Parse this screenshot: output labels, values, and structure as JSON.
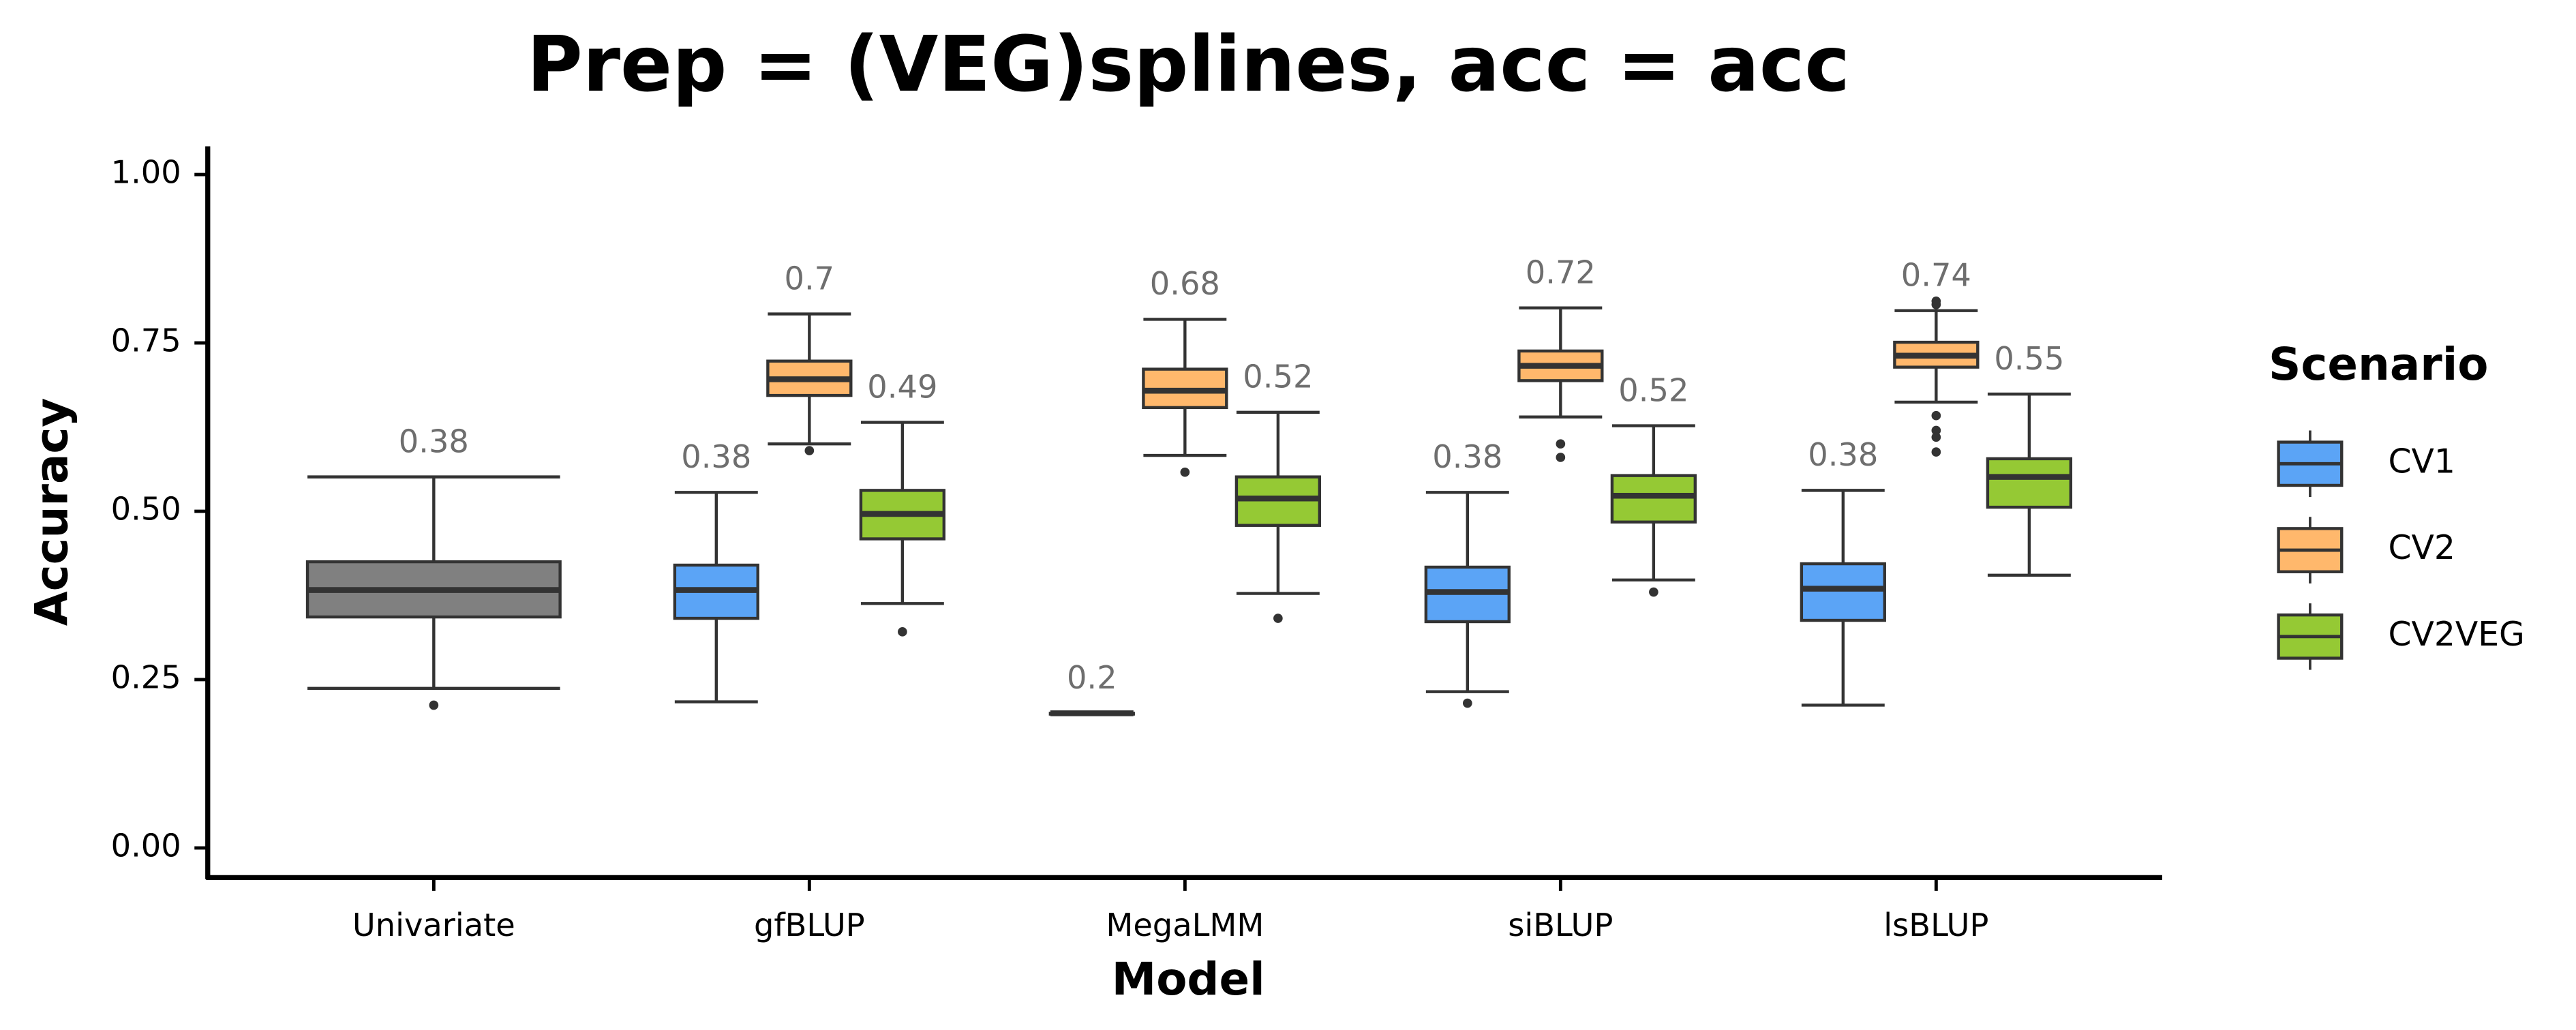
{
  "chart_data": {
    "type": "box",
    "title": "Prep = (VEG)splines, acc = acc",
    "xlabel": "Model",
    "ylabel": "Accuracy",
    "legend_title": "Scenario",
    "legend": "right",
    "categories": [
      "Univariate",
      "gfBLUP",
      "MegaLMM",
      "siBLUP",
      "lsBLUP"
    ],
    "ylim": [
      -0.044,
      1.042
    ],
    "yticks": [
      {
        "value": 0,
        "label": "0.00"
      },
      0.25,
      {
        "value": 0.5,
        "label": "0.50"
      },
      0.75,
      {
        "value": 1,
        "label": "1.00"
      }
    ],
    "series": [
      {
        "color": "#808080",
        "boxes": [
          {
            "whislo": 0.237,
            "q1": 0.343,
            "med": 0.383,
            "q3": 0.425,
            "whishi": 0.551,
            "fliers": [
              0.212
            ],
            "mean_label": 0.38
          },
          null,
          null,
          null,
          null
        ]
      },
      {
        "name": "CV1",
        "color": "#5ba4f6",
        "boxes": [
          null,
          {
            "whislo": 0.217,
            "q1": 0.341,
            "med": 0.383,
            "q3": 0.42,
            "whishi": 0.528,
            "fliers": [],
            "mean_label": 0.38
          },
          {
            "whislo": 0.2,
            "q1": 0.2,
            "med": 0.2,
            "q3": 0.2,
            "whishi": 0.2,
            "fliers": [],
            "mean_label": 0.2
          },
          {
            "whislo": 0.232,
            "q1": 0.336,
            "med": 0.38,
            "q3": 0.417,
            "whishi": 0.528,
            "fliers": [
              0.215
            ],
            "mean_label": 0.38
          },
          {
            "whislo": 0.212,
            "q1": 0.338,
            "med": 0.385,
            "q3": 0.422,
            "whishi": 0.531,
            "fliers": [],
            "mean_label": 0.38
          }
        ]
      },
      {
        "name": "CV2",
        "color": "#ffb86c",
        "boxes": [
          null,
          {
            "whislo": 0.6,
            "q1": 0.672,
            "med": 0.696,
            "q3": 0.723,
            "whishi": 0.793,
            "fliers": [
              0.59
            ],
            "mean_label": 0.7
          },
          {
            "whislo": 0.583,
            "q1": 0.654,
            "med": 0.679,
            "q3": 0.711,
            "whishi": 0.785,
            "fliers": [
              0.558
            ],
            "mean_label": 0.68
          },
          {
            "whislo": 0.64,
            "q1": 0.694,
            "med": 0.716,
            "q3": 0.738,
            "whishi": 0.802,
            "fliers": [
              0.6,
              0.58
            ],
            "mean_label": 0.72
          },
          {
            "whislo": 0.662,
            "q1": 0.714,
            "med": 0.731,
            "q3": 0.751,
            "whishi": 0.798,
            "fliers": [
              0.812,
              0.807,
              0.642,
              0.62,
              0.61,
              0.588
            ],
            "mean_label": 0.74
          }
        ]
      },
      {
        "name": "CV2VEG",
        "color": "#95c934",
        "boxes": [
          null,
          {
            "whislo": 0.363,
            "q1": 0.459,
            "med": 0.496,
            "q3": 0.531,
            "whishi": 0.632,
            "fliers": [
              0.321
            ],
            "mean_label": 0.49
          },
          {
            "whislo": 0.378,
            "q1": 0.479,
            "med": 0.519,
            "q3": 0.551,
            "whishi": 0.647,
            "fliers": [
              0.341
            ],
            "mean_label": 0.52
          },
          {
            "whislo": 0.398,
            "q1": 0.484,
            "med": 0.523,
            "q3": 0.553,
            "whishi": 0.627,
            "fliers": [
              0.38
            ],
            "mean_label": 0.52
          },
          {
            "whislo": 0.405,
            "q1": 0.506,
            "med": 0.551,
            "q3": 0.578,
            "whishi": 0.674,
            "fliers": [],
            "mean_label": 0.55
          }
        ]
      }
    ]
  }
}
